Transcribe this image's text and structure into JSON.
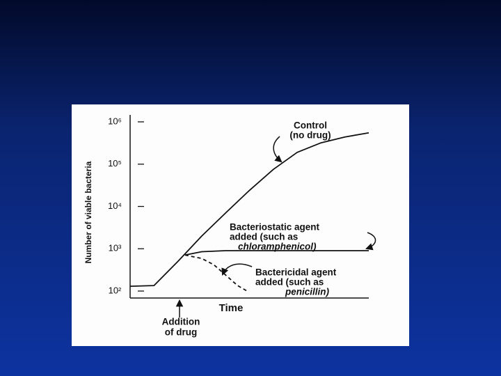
{
  "chart_data": {
    "type": "line",
    "ylabel": "Number of viable bacteria",
    "xlabel": "Time",
    "log_y": true,
    "ylim": [
      100,
      1000000
    ],
    "yticks": [
      {
        "value": 100,
        "label": "10²"
      },
      {
        "value": 1000,
        "label": "10³"
      },
      {
        "value": 10000,
        "label": "10⁴"
      },
      {
        "value": 100000,
        "label": "10⁵"
      },
      {
        "value": 1000000,
        "label": "10⁶"
      }
    ],
    "xlim": [
      0,
      10
    ],
    "series": [
      {
        "name": "Control",
        "color": "#111111",
        "dash": false,
        "x": [
          0,
          1,
          2,
          3,
          4,
          5,
          6,
          7,
          8,
          9,
          10
        ],
        "values": [
          130,
          135,
          500,
          2000,
          7000,
          24000,
          75000,
          190000,
          320000,
          440000,
          550000
        ]
      },
      {
        "name": "Bacteriostatic",
        "color": "#111111",
        "dash": false,
        "x": [
          2.3,
          3,
          4,
          5,
          6,
          7,
          8,
          9,
          10
        ],
        "values": [
          710,
          850,
          900,
          900,
          900,
          900,
          900,
          900,
          900
        ]
      },
      {
        "name": "Bactericidal",
        "color": "#111111",
        "dash": true,
        "x": [
          2.3,
          3,
          3.5,
          4,
          4.5,
          4.9
        ],
        "values": [
          710,
          590,
          420,
          240,
          135,
          100
        ]
      }
    ],
    "annotations": {
      "control": [
        "Control",
        "(no drug)"
      ],
      "bacteriostatic": [
        "Bacteriostatic agent",
        "added (such as",
        "chloramphenicol)"
      ],
      "bactericidal": [
        "Bactericidal agent",
        "added (such as",
        "penicillin)"
      ],
      "addition": [
        "Addition",
        "of drug"
      ]
    }
  }
}
